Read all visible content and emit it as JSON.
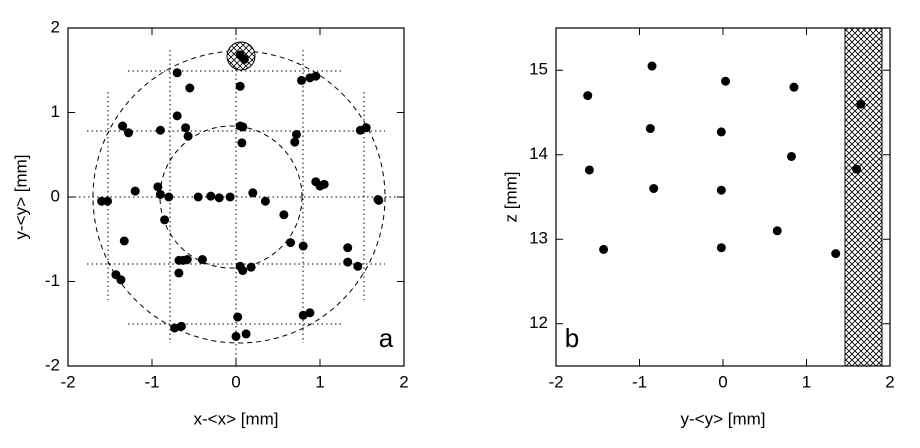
{
  "chart_data": [
    {
      "type": "scatter",
      "annotation": "a",
      "x_label": "x-<x> [mm]",
      "y_label": "y-<y> [mm]",
      "color": "#000000",
      "xlim": [
        -2,
        2
      ],
      "ylim": [
        -2,
        2
      ],
      "xticks": [
        -2,
        -1,
        0,
        1,
        2
      ],
      "yticks": [
        -2,
        -1,
        0,
        1,
        2
      ],
      "x": [
        0.05,
        0.1,
        -0.7,
        -0.55,
        0.78,
        0.88,
        0.95,
        0.05,
        -1.35,
        -1.28,
        -0.9,
        -0.7,
        -0.6,
        -0.57,
        0.05,
        0.08,
        0.07,
        0.72,
        0.7,
        1.48,
        1.55,
        -1.6,
        -1.53,
        -1.2,
        -0.93,
        -0.9,
        -0.85,
        -0.8,
        -0.45,
        -0.3,
        -0.2,
        -0.07,
        0.2,
        0.35,
        0.57,
        0.95,
        1.0,
        1.05,
        1.7,
        1.69,
        -1.33,
        0.65,
        0.8,
        1.33,
        1.33,
        1.45,
        -1.43,
        -1.37,
        -0.68,
        -0.68,
        -0.63,
        -0.58,
        -0.4,
        0.05,
        0.08,
        0.18,
        0.8,
        0.88,
        -0.73,
        -0.65,
        0.02,
        0.0,
        0.12
      ],
      "values": [
        1.68,
        1.63,
        1.47,
        1.29,
        1.38,
        1.41,
        1.43,
        1.31,
        0.84,
        0.76,
        0.79,
        0.96,
        0.82,
        0.72,
        0.84,
        0.83,
        0.64,
        0.74,
        0.65,
        0.79,
        0.82,
        -0.05,
        -0.05,
        0.07,
        0.12,
        0.03,
        -0.27,
        0.0,
        0.0,
        0.01,
        -0.01,
        0.0,
        0.05,
        -0.05,
        -0.21,
        0.18,
        0.13,
        0.15,
        -0.04,
        -0.03,
        -0.52,
        -0.54,
        -0.58,
        -0.6,
        -0.77,
        -0.82,
        -0.92,
        -0.98,
        -0.75,
        -0.9,
        -0.75,
        -0.74,
        -0.74,
        -0.82,
        -0.87,
        -0.83,
        -1.4,
        -1.37,
        -1.55,
        -1.53,
        -1.42,
        -1.65,
        -1.62
      ]
    },
    {
      "type": "scatter",
      "annotation": "b",
      "x_label": "y-<y> [mm]",
      "y_label": "z [mm]",
      "color": "#000000",
      "xlim": [
        -2,
        2
      ],
      "ylim": [
        11.5,
        15.5
      ],
      "xticks": [
        -2,
        -1,
        0,
        1,
        2
      ],
      "yticks": [
        12,
        13,
        14,
        15
      ],
      "x": [
        -1.62,
        -0.85,
        0.03,
        0.85,
        1.65,
        -0.87,
        -0.02,
        0.82,
        -1.6,
        -0.83,
        -0.02,
        1.6,
        -1.43,
        -0.02,
        0.65,
        1.35
      ],
      "values": [
        14.7,
        15.05,
        14.87,
        14.8,
        14.6,
        14.31,
        14.27,
        13.98,
        13.82,
        13.6,
        13.58,
        13.83,
        12.88,
        12.9,
        13.1,
        12.83
      ]
    }
  ]
}
